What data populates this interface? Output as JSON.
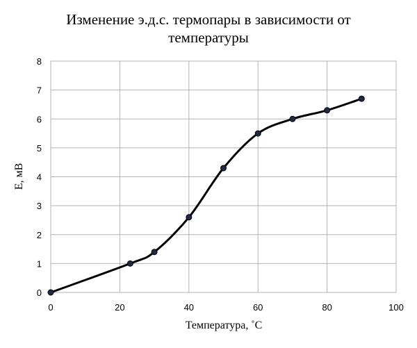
{
  "chart_data": {
    "type": "line",
    "title_lines": [
      "Изменение э.д.с. термопары в зависимости от",
      "температуры"
    ],
    "xlabel": "Температура, ˚С",
    "ylabel": "Е, мВ",
    "xlim": [
      0,
      100
    ],
    "ylim": [
      0,
      8
    ],
    "x_ticks": [
      0,
      20,
      40,
      60,
      80,
      100
    ],
    "y_ticks": [
      0,
      1,
      2,
      3,
      4,
      5,
      6,
      7,
      8
    ],
    "grid": true,
    "legend": "none",
    "smooth": true,
    "series": [
      {
        "color": "#000000",
        "marker_color": "#1f2a44",
        "x": [
          0,
          23,
          30,
          40,
          50,
          60,
          70,
          80,
          90
        ],
        "y": [
          0,
          1.0,
          1.4,
          2.6,
          4.3,
          5.5,
          6.0,
          6.3,
          6.7
        ]
      }
    ]
  }
}
